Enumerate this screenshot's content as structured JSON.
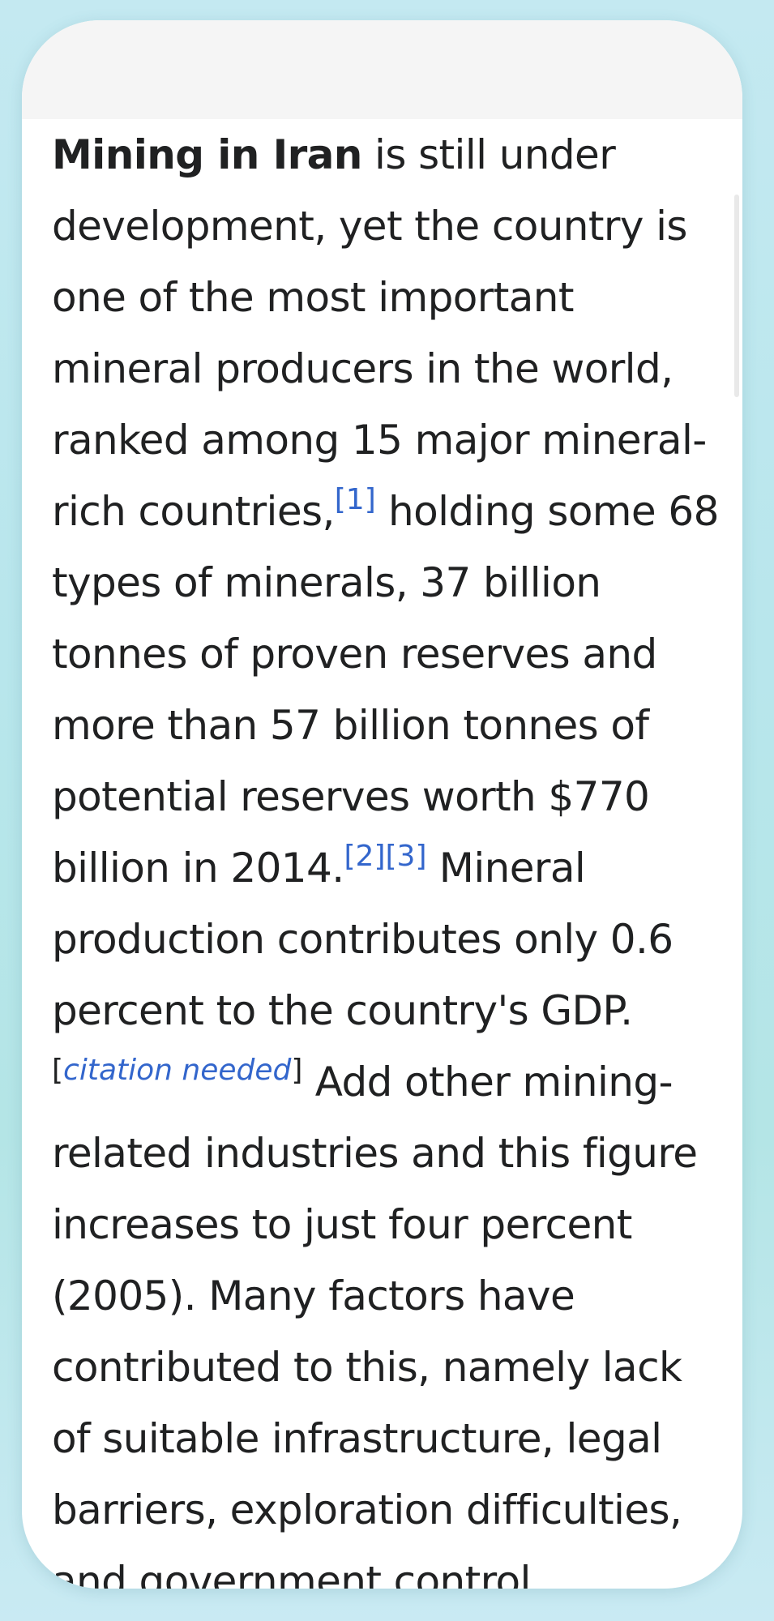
{
  "article": {
    "bold_title": "Mining in Iran",
    "text_1": " is still under development, yet the country is one of the most important mineral producers in the world, ranked among 15 major mineral-rich countries,",
    "ref_1": "[1]",
    "text_2": " holding some 68 types of minerals, 37 billion tonnes of proven reserves and more than 57 billion tonnes of potential reserves worth $770 billion in 2014.",
    "ref_2": "[2]",
    "ref_3": "[3]",
    "text_3": " Mineral production contributes only 0.6 percent to the country's GDP.",
    "citation_open": "[",
    "citation_needed": "citation needed",
    "citation_close": "]",
    "text_4": " Add other mining-related industries and this figure increases to just four percent (2005). Many factors have contributed to this, namely lack of suitable infrastructure, legal barriers, exploration difficulties, and government control."
  },
  "colors": {
    "text": "#202122",
    "link": "#3366cc",
    "header_bar": "#f5f5f5",
    "background": "#b8e6ec"
  }
}
